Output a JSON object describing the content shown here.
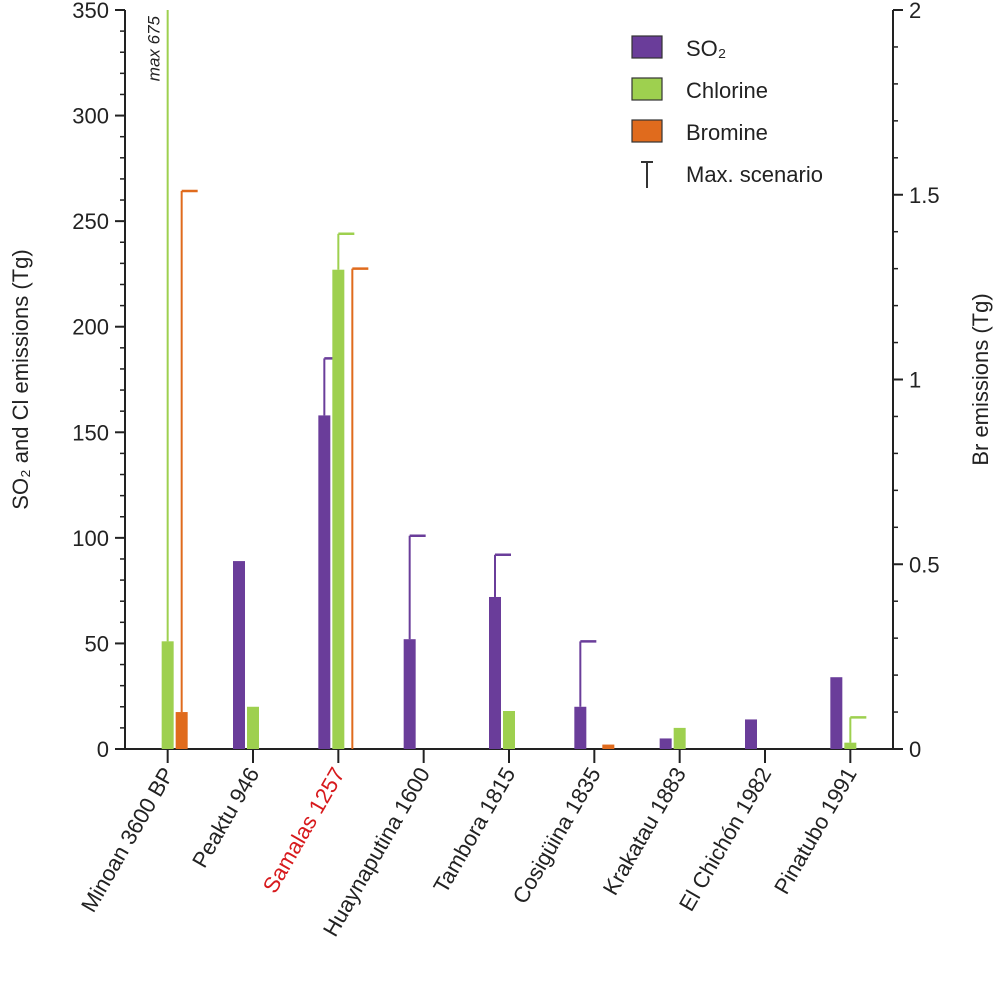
{
  "chart_data": {
    "type": "bar",
    "categories": [
      "Minoan 3600 BP",
      "Peaktu 946",
      "Samalas 1257",
      "Huaynaputina 1600",
      "Tambora 1815",
      "Cosigüina 1835",
      "Krakatau 1883",
      "El Chichón 1982",
      "Pinatubo 1991"
    ],
    "highlight_category": "Samalas 1257",
    "highlight_color": "#d7191c",
    "ylabel_left": "SO₂ and Cl emissions (Tg)",
    "ylabel_right": "Br emissions (Tg)",
    "ylim_left": [
      0,
      350
    ],
    "ylim_right": [
      0,
      2
    ],
    "yticks_left": [
      0,
      50,
      100,
      150,
      200,
      250,
      300,
      350
    ],
    "yticks_right": [
      0,
      0.5,
      1,
      1.5,
      2
    ],
    "yticks_right_labels": [
      "0",
      "0.5",
      "1",
      "1.5",
      "2"
    ],
    "legend_position": "top-right",
    "series": [
      {
        "name": "SO₂",
        "axis": "left",
        "color": "#6a3d9a",
        "values": [
          0,
          89,
          158,
          52,
          72,
          20,
          5,
          14,
          34
        ],
        "max": [
          null,
          null,
          185,
          101,
          92,
          51,
          null,
          null,
          null
        ]
      },
      {
        "name": "Chlorine",
        "axis": "left",
        "color": "#9ed04f",
        "values": [
          51,
          20,
          227,
          null,
          18,
          null,
          10,
          null,
          3
        ],
        "max": [
          675,
          null,
          244,
          null,
          null,
          null,
          null,
          null,
          15
        ]
      },
      {
        "name": "Bromine",
        "axis": "right",
        "color": "#e06b1d",
        "values": [
          0.1,
          null,
          null,
          null,
          null,
          0.012,
          null,
          null,
          null
        ],
        "max": [
          1.51,
          null,
          1.3,
          null,
          null,
          null,
          null,
          null,
          null
        ]
      }
    ],
    "legend_max_label": "Max. scenario",
    "annotations": [
      {
        "text": "max 675",
        "category": "Minoan 3600 BP",
        "series": "Chlorine"
      }
    ]
  }
}
